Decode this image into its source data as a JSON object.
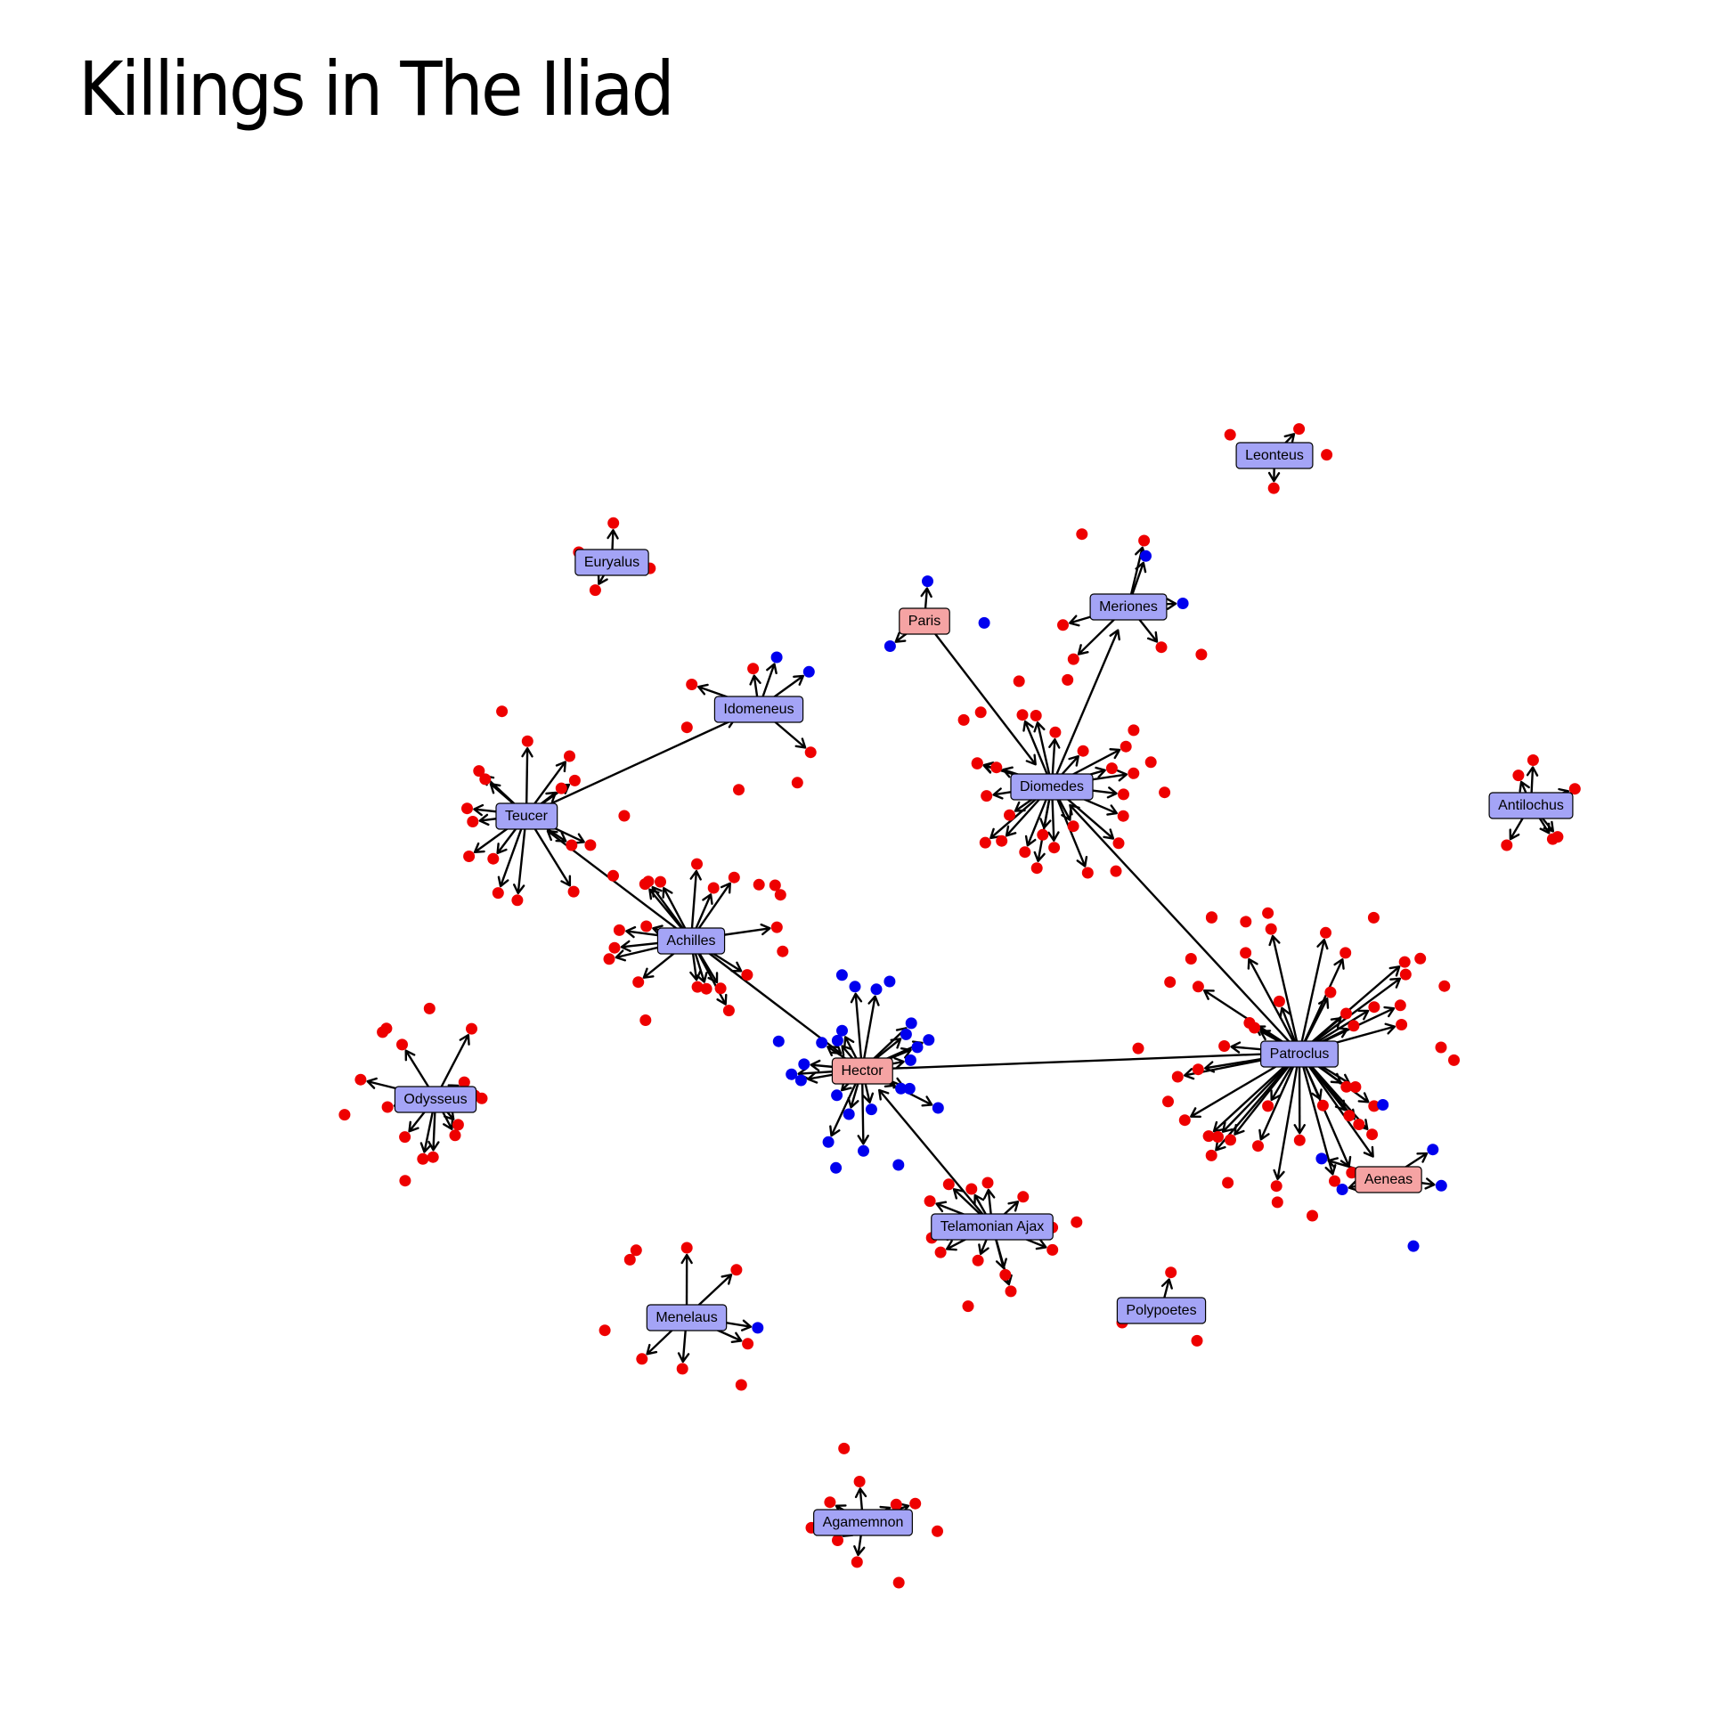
{
  "title": "Killings in The Iliad",
  "colors": {
    "greek_node": "#a4a4f6",
    "trojan_node": "#f5a3a3",
    "greek_victim": "#0000ee",
    "trojan_victim": "#ee0000",
    "edge": "#000000"
  },
  "named_nodes": [
    {
      "id": "teucer",
      "label": "Teucer",
      "side": "greek"
    },
    {
      "id": "achilles",
      "label": "Achilles",
      "side": "greek"
    },
    {
      "id": "diomedes",
      "label": "Diomedes",
      "side": "greek"
    },
    {
      "id": "patroclus",
      "label": "Patroclus",
      "side": "greek"
    },
    {
      "id": "odysseus",
      "label": "Odysseus",
      "side": "greek"
    },
    {
      "id": "menelaus",
      "label": "Menelaus",
      "side": "greek"
    },
    {
      "id": "agamemnon",
      "label": "Agamemnon",
      "side": "greek"
    },
    {
      "id": "telamonian-ajax",
      "label": "Telamonian Ajax",
      "side": "greek"
    },
    {
      "id": "idomeneus",
      "label": "Idomeneus",
      "side": "greek"
    },
    {
      "id": "euryalus",
      "label": "Euryalus",
      "side": "greek"
    },
    {
      "id": "meriones",
      "label": "Meriones",
      "side": "greek"
    },
    {
      "id": "leonteus",
      "label": "Leonteus",
      "side": "greek"
    },
    {
      "id": "antilochus",
      "label": "Antilochus",
      "side": "greek"
    },
    {
      "id": "polypoetes",
      "label": "Polypoetes",
      "side": "greek"
    },
    {
      "id": "hector",
      "label": "Hector",
      "side": "trojan"
    },
    {
      "id": "paris",
      "label": "Paris",
      "side": "trojan"
    },
    {
      "id": "aeneas",
      "label": "Aeneas",
      "side": "trojan"
    }
  ],
  "killings_between_named": [
    {
      "killer": "teucer",
      "victim": "idomeneus"
    },
    {
      "killer": "achilles",
      "victim": "teucer"
    },
    {
      "killer": "achilles",
      "victim": "hector"
    },
    {
      "killer": "hector",
      "victim": "patroclus"
    },
    {
      "killer": "paris",
      "victim": "diomedes"
    },
    {
      "killer": "patroclus",
      "victim": "diomedes"
    },
    {
      "killer": "telamonian-ajax",
      "victim": "hector"
    },
    {
      "killer": "diomedes",
      "victim": "meriones"
    },
    {
      "killer": "patroclus",
      "victim": "aeneas"
    }
  ],
  "victims_per_killer": [
    {
      "killer": "teucer",
      "trojan": 17,
      "greek": 0
    },
    {
      "killer": "achilles",
      "trojan": 23,
      "greek": 0
    },
    {
      "killer": "diomedes",
      "trojan": 30,
      "greek": 0
    },
    {
      "killer": "patroclus",
      "trojan": 54,
      "greek": 0
    },
    {
      "killer": "odysseus",
      "trojan": 17,
      "greek": 0
    },
    {
      "killer": "menelaus",
      "trojan": 9,
      "greek": 1
    },
    {
      "killer": "agamemnon",
      "trojan": 10,
      "greek": 0
    },
    {
      "killer": "telamonian-ajax",
      "trojan": 14,
      "greek": 0
    },
    {
      "killer": "hector",
      "trojan": 0,
      "greek": 26
    },
    {
      "killer": "aeneas",
      "trojan": 0,
      "greek": 6
    },
    {
      "killer": "paris",
      "trojan": 0,
      "greek": 3
    },
    {
      "killer": "meriones",
      "trojan": 7,
      "greek": 2
    },
    {
      "killer": "idomeneus",
      "trojan": 6,
      "greek": 2
    },
    {
      "killer": "euryalus",
      "trojan": 4,
      "greek": 0
    },
    {
      "killer": "leonteus",
      "trojan": 4,
      "greek": 0
    },
    {
      "killer": "antilochus",
      "trojan": 7,
      "greek": 0
    },
    {
      "killer": "polypoetes",
      "trojan": 3,
      "greek": 0
    }
  ]
}
